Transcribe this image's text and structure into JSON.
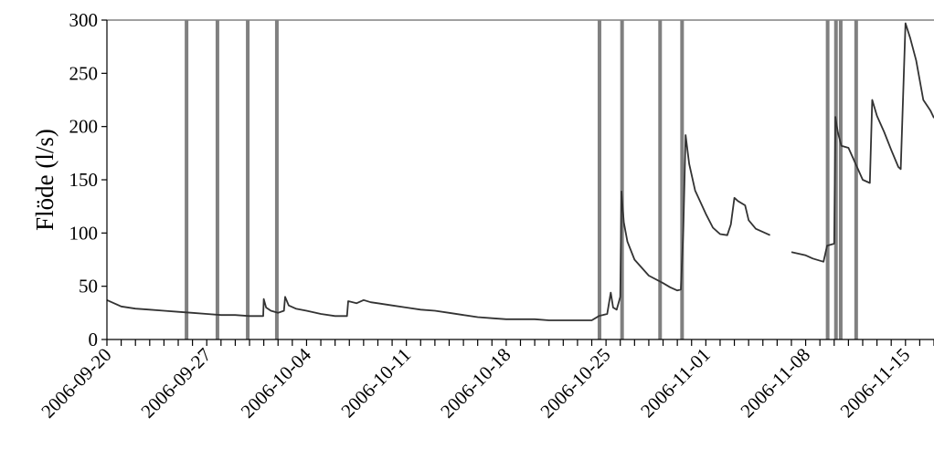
{
  "chart_data": {
    "type": "line",
    "title": "",
    "xlabel": "",
    "ylabel": "Flöde (l/s)",
    "ylim": [
      0,
      300
    ],
    "yticks": [
      0,
      50,
      100,
      150,
      200,
      250,
      300
    ],
    "xlim": [
      "2006-09-20",
      "2006-11-17"
    ],
    "xtick_labels": [
      "2006-09-20",
      "2006-09-27",
      "2006-10-04",
      "2006-10-11",
      "2006-10-18",
      "2006-10-25",
      "2006-11-01",
      "2006-11-08",
      "2006-11-15"
    ],
    "grid": false,
    "legend": "none",
    "colors": {
      "line": "#333333",
      "events": "#808080",
      "axis": "#000000",
      "top_border": "#808080"
    },
    "event_lines": [
      "2006-09-25 14:00",
      "2006-09-27 18:00",
      "2006-09-29 21:00",
      "2006-10-01 22:00",
      "2006-10-24 13:00",
      "2006-10-26 03:00",
      "2006-10-28 19:00",
      "2006-10-30 08:00",
      "2006-11-09 13:00",
      "2006-11-10 03:00",
      "2006-11-10 11:00",
      "2006-11-11 13:00"
    ],
    "series": [
      {
        "segments": [
          [
            [
              "2006-09-20 00:00",
              37
            ],
            [
              "2006-09-20 12:00",
              34
            ],
            [
              "2006-09-21 00:00",
              31
            ],
            [
              "2006-09-22 00:00",
              29
            ],
            [
              "2006-09-23 00:00",
              28
            ],
            [
              "2006-09-24 00:00",
              27
            ],
            [
              "2006-09-25 00:00",
              26
            ],
            [
              "2006-09-26 00:00",
              25
            ],
            [
              "2006-09-27 00:00",
              24
            ],
            [
              "2006-09-28 00:00",
              23
            ],
            [
              "2006-09-29 00:00",
              23
            ],
            [
              "2006-09-30 00:00",
              22
            ],
            [
              "2006-09-30 23:00",
              22
            ],
            [
              "2006-10-01 00:00",
              38
            ],
            [
              "2006-10-01 04:00",
              30
            ],
            [
              "2006-10-01 12:00",
              27
            ],
            [
              "2006-10-02 00:00",
              25
            ],
            [
              "2006-10-02 10:00",
              27
            ],
            [
              "2006-10-02 12:00",
              40
            ],
            [
              "2006-10-02 18:00",
              32
            ],
            [
              "2006-10-03 06:00",
              29
            ],
            [
              "2006-10-04 00:00",
              27
            ],
            [
              "2006-10-05 00:00",
              24
            ],
            [
              "2006-10-06 00:00",
              22
            ],
            [
              "2006-10-06 20:00",
              22
            ],
            [
              "2006-10-06 22:00",
              36
            ],
            [
              "2006-10-07 12:00",
              34
            ],
            [
              "2006-10-08 00:00",
              37
            ],
            [
              "2006-10-08 12:00",
              35
            ],
            [
              "2006-10-09 00:00",
              34
            ],
            [
              "2006-10-10 00:00",
              32
            ],
            [
              "2006-10-11 00:00",
              30
            ],
            [
              "2006-10-12 00:00",
              28
            ],
            [
              "2006-10-13 00:00",
              27
            ],
            [
              "2006-10-14 00:00",
              25
            ],
            [
              "2006-10-15 00:00",
              23
            ],
            [
              "2006-10-16 00:00",
              21
            ],
            [
              "2006-10-17 00:00",
              20
            ],
            [
              "2006-10-18 00:00",
              19
            ],
            [
              "2006-10-19 00:00",
              19
            ],
            [
              "2006-10-20 00:00",
              19
            ],
            [
              "2006-10-21 00:00",
              18
            ],
            [
              "2006-10-22 00:00",
              18
            ],
            [
              "2006-10-23 00:00",
              18
            ],
            [
              "2006-10-24 00:00",
              18
            ],
            [
              "2006-10-24 12:00",
              22
            ],
            [
              "2006-10-25 02:00",
              24
            ],
            [
              "2006-10-25 08:00",
              44
            ],
            [
              "2006-10-25 12:00",
              30
            ],
            [
              "2006-10-25 18:00",
              28
            ],
            [
              "2006-10-26 00:00",
              40
            ],
            [
              "2006-10-26 02:00",
              139
            ],
            [
              "2006-10-26 06:00",
              110
            ],
            [
              "2006-10-26 12:00",
              92
            ],
            [
              "2006-10-27 00:00",
              75
            ],
            [
              "2006-10-28 00:00",
              60
            ],
            [
              "2006-10-29 00:00",
              53
            ],
            [
              "2006-10-29 12:00",
              49
            ],
            [
              "2006-10-30 00:00",
              46
            ],
            [
              "2006-10-30 06:00",
              47
            ],
            [
              "2006-10-30 10:00",
              100
            ],
            [
              "2006-10-30 14:00",
              192
            ],
            [
              "2006-10-30 20:00",
              165
            ],
            [
              "2006-10-31 06:00",
              140
            ],
            [
              "2006-11-01 00:00",
              118
            ],
            [
              "2006-11-01 12:00",
              105
            ],
            [
              "2006-11-02 00:00",
              99
            ],
            [
              "2006-11-02 12:00",
              98
            ],
            [
              "2006-11-02 18:00",
              108
            ],
            [
              "2006-11-03 00:00",
              133
            ],
            [
              "2006-11-03 06:00",
              130
            ],
            [
              "2006-11-03 18:00",
              126
            ],
            [
              "2006-11-04 00:00",
              112
            ],
            [
              "2006-11-04 12:00",
              104
            ],
            [
              "2006-11-05 00:00",
              101
            ],
            [
              "2006-11-05 12:00",
              98
            ]
          ],
          [
            [
              "2006-11-07 00:00",
              82
            ],
            [
              "2006-11-08 00:00",
              79
            ],
            [
              "2006-11-08 12:00",
              76
            ],
            [
              "2006-11-09 06:00",
              73
            ],
            [
              "2006-11-09 12:00",
              88
            ],
            [
              "2006-11-10 00:00",
              90
            ],
            [
              "2006-11-10 02:00",
              209
            ],
            [
              "2006-11-10 06:00",
              195
            ],
            [
              "2006-11-10 12:00",
              182
            ],
            [
              "2006-11-11 00:00",
              180
            ],
            [
              "2006-11-11 12:00",
              165
            ],
            [
              "2006-11-12 00:00",
              150
            ],
            [
              "2006-11-12 12:00",
              147
            ],
            [
              "2006-11-12 16:00",
              225
            ],
            [
              "2006-11-13 00:00",
              210
            ],
            [
              "2006-11-13 12:00",
              195
            ],
            [
              "2006-11-14 00:00",
              178
            ],
            [
              "2006-11-14 12:00",
              162
            ],
            [
              "2006-11-14 16:00",
              160
            ],
            [
              "2006-11-15 00:00",
              297
            ],
            [
              "2006-11-15 08:00",
              283
            ],
            [
              "2006-11-15 18:00",
              262
            ],
            [
              "2006-11-16 06:00",
              225
            ],
            [
              "2006-11-16 18:00",
              215
            ],
            [
              "2006-11-17 00:00",
              208
            ]
          ]
        ]
      }
    ]
  }
}
